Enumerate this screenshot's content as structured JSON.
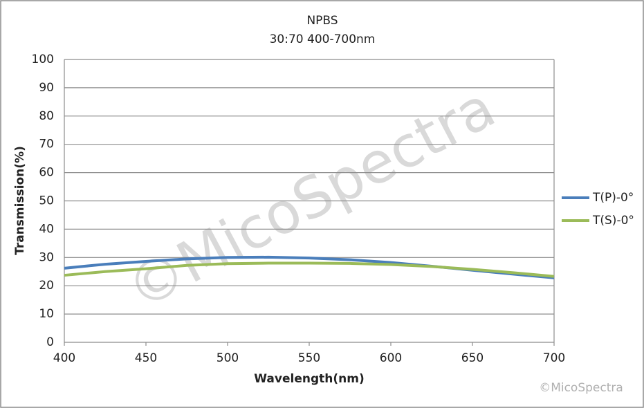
{
  "chart_data": {
    "type": "line",
    "title": "NPBS",
    "subtitle": "30:70  400-700nm",
    "x_label": "Wavelength(nm)",
    "y_label": "Transmission(%)",
    "watermark": "©MicoSpectra",
    "annotation": "©MicoSpectra",
    "x": [
      400,
      425,
      450,
      475,
      500,
      525,
      550,
      575,
      600,
      625,
      650,
      675,
      700
    ],
    "series": [
      {
        "name": "T(P)-0°",
        "color": "#4a7ebb",
        "values": [
          26.2,
          27.6,
          28.6,
          29.5,
          30.0,
          30.1,
          29.8,
          29.2,
          28.2,
          26.9,
          25.5,
          24.1,
          22.8
        ]
      },
      {
        "name": "T(S)-0°",
        "color": "#9bbb59",
        "values": [
          23.7,
          25.0,
          26.0,
          27.2,
          27.8,
          28.0,
          28.0,
          27.9,
          27.5,
          26.8,
          25.8,
          24.6,
          23.3
        ]
      }
    ],
    "xlim": [
      400,
      700
    ],
    "xticks": [
      400,
      450,
      500,
      550,
      600,
      650,
      700
    ],
    "ylim": [
      0,
      100
    ],
    "yticks": [
      0,
      10,
      20,
      30,
      40,
      50,
      60,
      70,
      80,
      90,
      100
    ],
    "grid": true,
    "legend": "right"
  }
}
